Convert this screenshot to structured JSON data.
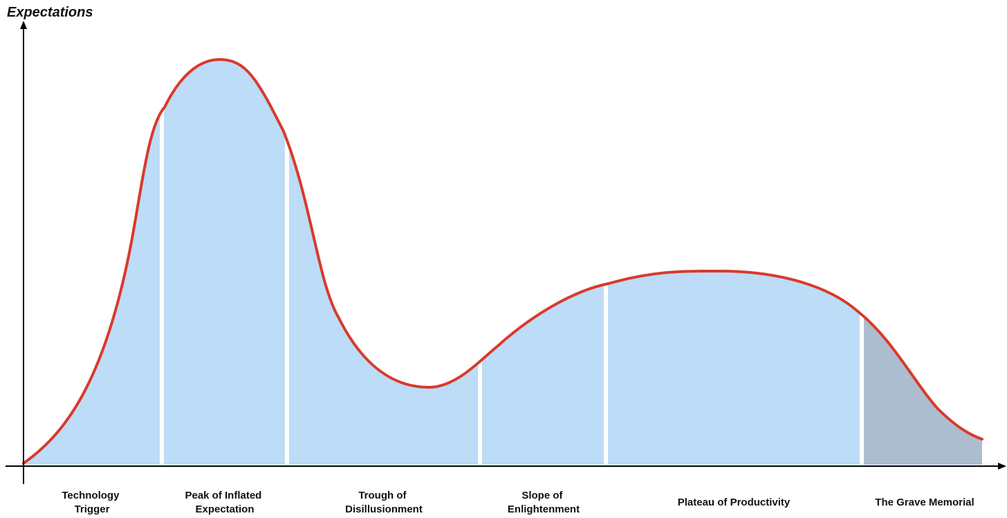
{
  "diagram": {
    "y_axis_label": "Expectations",
    "phases": [
      {
        "id": "technology-trigger",
        "lines": [
          "Technology",
          "Trigger"
        ]
      },
      {
        "id": "peak-of-inflated-expectation",
        "lines": [
          "Peak of Inflated",
          "Expectation"
        ]
      },
      {
        "id": "trough-of-disillusionment",
        "lines": [
          "Trough of",
          "Disillusionment"
        ]
      },
      {
        "id": "slope-of-enlightenment",
        "lines": [
          "Slope of",
          "Enlightenment"
        ]
      },
      {
        "id": "plateau-of-productivity",
        "lines": [
          "Plateau of Productivity"
        ]
      },
      {
        "id": "the-grave-memorial",
        "lines": [
          "The Grave Memorial"
        ]
      }
    ],
    "colors": {
      "curve": "#d93a2b",
      "fill": "#bcdcf8",
      "fill_last": "#adbdd0",
      "axis": "#000000",
      "separator": "#ffffff"
    }
  }
}
